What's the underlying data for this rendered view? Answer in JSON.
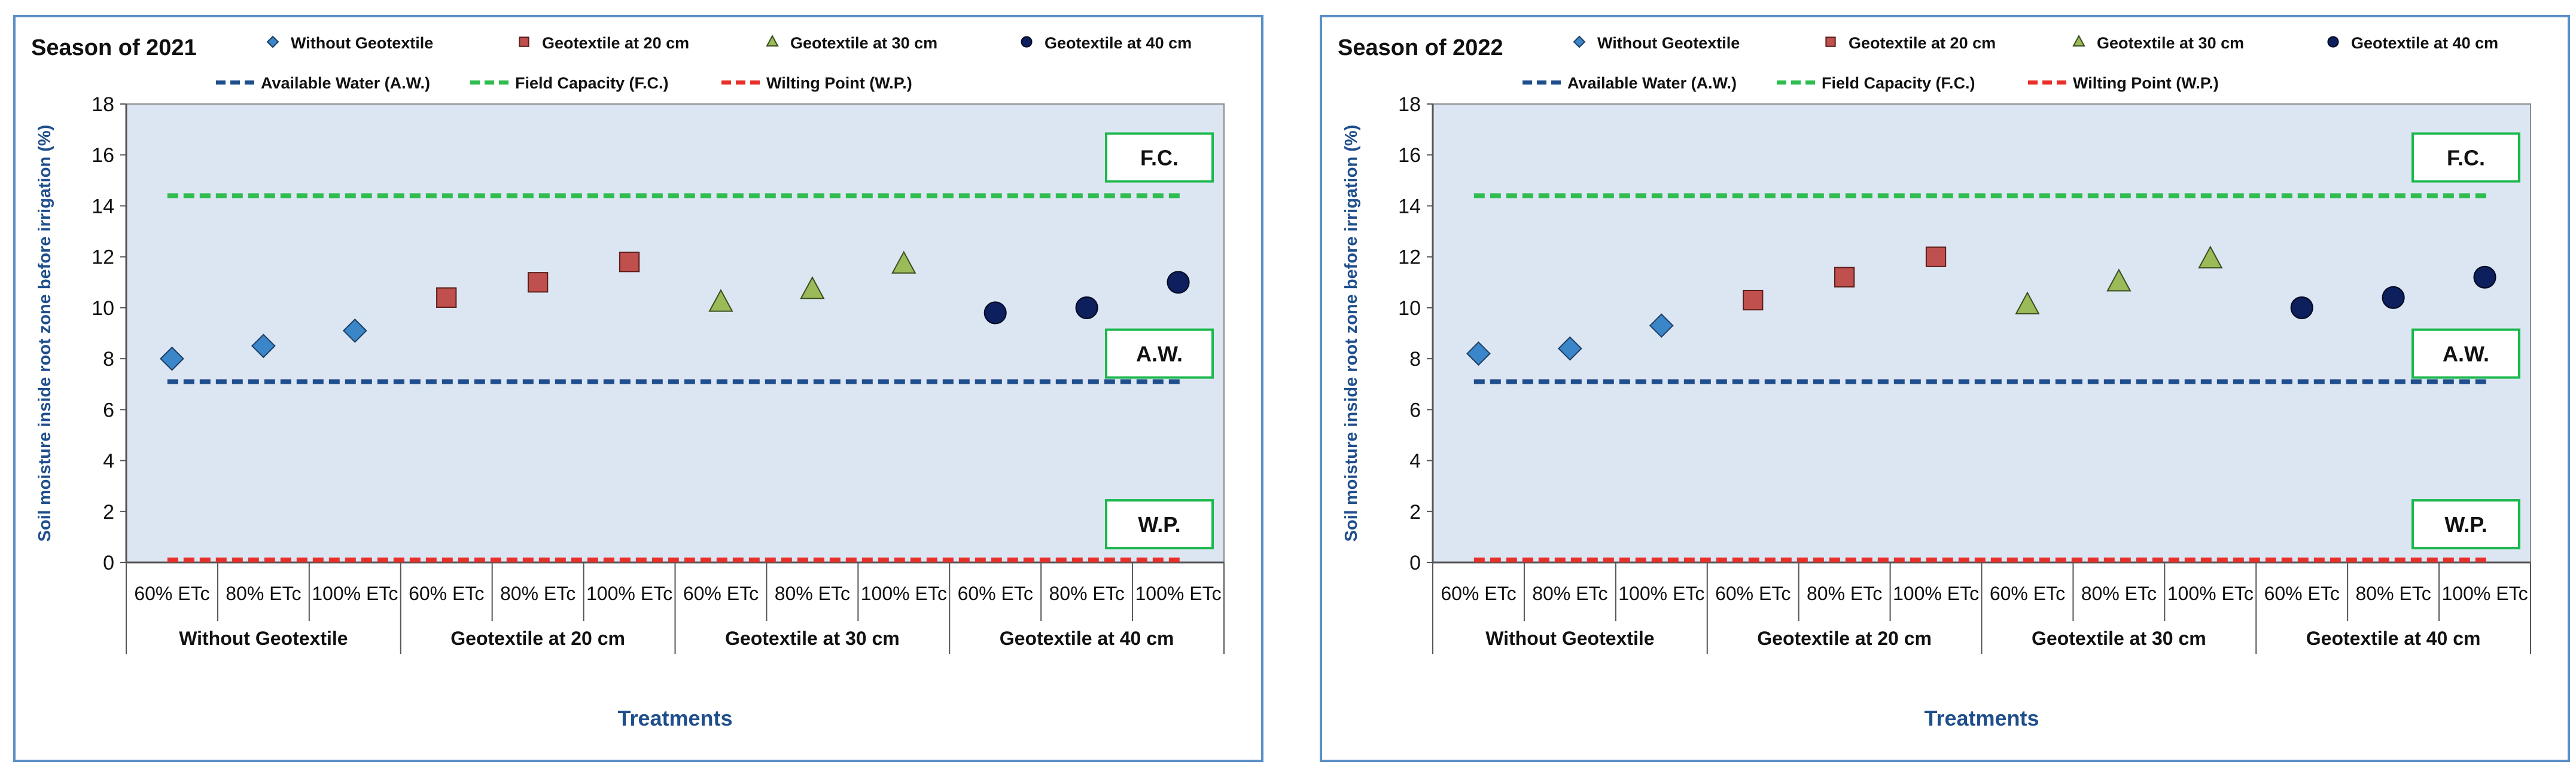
{
  "chart_data": [
    {
      "type": "scatter",
      "title": "Season of 2021",
      "xlabel": "Treatments",
      "ylabel": "Soil moisture inside root zone before irrigation (%)",
      "ylim": [
        0,
        18
      ],
      "yticks": [
        0,
        2,
        4,
        6,
        8,
        10,
        12,
        14,
        16,
        18
      ],
      "categories": [
        "60% ETc",
        "80% ETc",
        "100% ETc",
        "60% ETc",
        "80% ETc",
        "100% ETc",
        "60% ETc",
        "80% ETc",
        "100% ETc",
        "60% ETc",
        "80% ETc",
        "100% ETc"
      ],
      "groups": [
        "Without Geotextile",
        "Geotextile at 20 cm",
        "Geotextile at 30 cm",
        "Geotextile at 40 cm"
      ],
      "series": [
        {
          "name": "Without Geotextile",
          "marker": "diamond",
          "color": "#3a86c8",
          "values": [
            8.0,
            8.5,
            9.1
          ]
        },
        {
          "name": "Geotextile at 20 cm",
          "marker": "square",
          "color": "#c0504d",
          "values": [
            10.4,
            11.0,
            11.8
          ]
        },
        {
          "name": "Geotextile at 30 cm",
          "marker": "triangle",
          "color": "#9bbb59",
          "values": [
            10.2,
            10.7,
            11.7
          ]
        },
        {
          "name": "Geotextile at 40 cm",
          "marker": "circle",
          "color": "#0d1f5c",
          "values": [
            9.8,
            10.0,
            11.0
          ]
        }
      ],
      "reference_lines": [
        {
          "name": "Available Water (A.W.)",
          "value": 7.1,
          "color": "#1f4e8c",
          "label": "A.W.",
          "label_y": 8.2
        },
        {
          "name": "Field Capacity (F.C.)",
          "value": 14.4,
          "color": "#2ebd4e",
          "label": "F.C.",
          "label_y": 15.9
        },
        {
          "name": "Wilting Point (W.P.)",
          "value": 0.1,
          "color": "#e8302a",
          "label": "W.P.",
          "label_y": 1.5
        }
      ]
    },
    {
      "type": "scatter",
      "title": "Season of 2022",
      "xlabel": "Treatments",
      "ylabel": "Soil moisture inside root zone before irrigation (%)",
      "ylim": [
        0,
        18
      ],
      "yticks": [
        0,
        2,
        4,
        6,
        8,
        10,
        12,
        14,
        16,
        18
      ],
      "categories": [
        "60% ETc",
        "80% ETc",
        "100% ETc",
        "60% ETc",
        "80% ETc",
        "100% ETc",
        "60% ETc",
        "80% ETc",
        "100% ETc",
        "60% ETc",
        "80% ETc",
        "100% ETc"
      ],
      "groups": [
        "Without Geotextile",
        "Geotextile at 20 cm",
        "Geotextile at 30 cm",
        "Geotextile at 40 cm"
      ],
      "series": [
        {
          "name": "Without Geotextile",
          "marker": "diamond",
          "color": "#3a86c8",
          "values": [
            8.2,
            8.4,
            9.3
          ]
        },
        {
          "name": "Geotextile at 20 cm",
          "marker": "square",
          "color": "#c0504d",
          "values": [
            10.3,
            11.2,
            12.0
          ]
        },
        {
          "name": "Geotextile at 30 cm",
          "marker": "triangle",
          "color": "#9bbb59",
          "values": [
            10.1,
            11.0,
            11.9
          ]
        },
        {
          "name": "Geotextile at 40 cm",
          "marker": "circle",
          "color": "#0d1f5c",
          "values": [
            10.0,
            10.4,
            11.2
          ]
        }
      ],
      "reference_lines": [
        {
          "name": "Available Water (A.W.)",
          "value": 7.1,
          "color": "#1f4e8c",
          "label": "A.W.",
          "label_y": 8.2
        },
        {
          "name": "Field Capacity (F.C.)",
          "value": 14.4,
          "color": "#2ebd4e",
          "label": "F.C.",
          "label_y": 15.9
        },
        {
          "name": "Wilting Point (W.P.)",
          "value": 0.1,
          "color": "#e8302a",
          "label": "W.P.",
          "label_y": 1.5
        }
      ]
    }
  ]
}
